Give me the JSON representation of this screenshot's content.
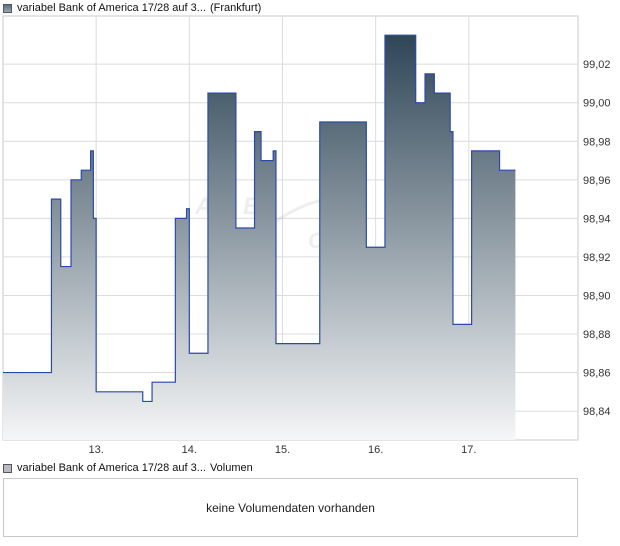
{
  "chart_data": {
    "type": "area",
    "legend": {
      "series_name": "variabel Bank of America 17/28 auf 3...",
      "series_note": "(Frankfurt)",
      "placement": "top-left"
    },
    "x_ticks": [
      {
        "label": "13.",
        "x": 1.0
      },
      {
        "label": "14.",
        "x": 2.0
      },
      {
        "label": "15.",
        "x": 3.0
      },
      {
        "label": "16.",
        "x": 4.0
      },
      {
        "label": "17.",
        "x": 5.0
      }
    ],
    "xlim": [
      0.0,
      5.85
    ],
    "ylim": [
      98.825,
      99.045
    ],
    "y_ticks": [
      {
        "label": "98,84",
        "value": 98.84
      },
      {
        "label": "98,86",
        "value": 98.86
      },
      {
        "label": "98,88",
        "value": 98.88
      },
      {
        "label": "98,90",
        "value": 98.9
      },
      {
        "label": "98,92",
        "value": 98.92
      },
      {
        "label": "98,94",
        "value": 98.94
      },
      {
        "label": "98,96",
        "value": 98.96
      },
      {
        "label": "98,98",
        "value": 98.98
      },
      {
        "label": "99,00",
        "value": 99.0
      },
      {
        "label": "99,02",
        "value": 99.02
      }
    ],
    "grid": true,
    "step": true,
    "points": [
      [
        0.0,
        98.86
      ],
      [
        0.52,
        98.95
      ],
      [
        0.62,
        98.915
      ],
      [
        0.73,
        98.96
      ],
      [
        0.84,
        98.965
      ],
      [
        0.94,
        98.975
      ],
      [
        0.97,
        98.94
      ],
      [
        1.0,
        98.85
      ],
      [
        1.5,
        98.845
      ],
      [
        1.6,
        98.855
      ],
      [
        1.85,
        98.94
      ],
      [
        1.97,
        98.945
      ],
      [
        2.0,
        98.87
      ],
      [
        2.2,
        99.005
      ],
      [
        2.5,
        98.935
      ],
      [
        2.7,
        98.985
      ],
      [
        2.77,
        98.97
      ],
      [
        2.9,
        98.975
      ],
      [
        2.93,
        98.875
      ],
      [
        3.4,
        98.99
      ],
      [
        3.9,
        98.925
      ],
      [
        4.1,
        99.035
      ],
      [
        4.43,
        99.0
      ],
      [
        4.53,
        99.015
      ],
      [
        4.63,
        99.005
      ],
      [
        4.8,
        98.985
      ],
      [
        4.83,
        98.885
      ],
      [
        5.03,
        98.975
      ],
      [
        5.33,
        98.965
      ],
      [
        5.5,
        98.965
      ]
    ]
  },
  "volume": {
    "legend_series": "variabel Bank of America 17/28 auf 3...",
    "legend_label": "Volumen",
    "message": "keine Volumendaten vorhanden"
  },
  "colors": {
    "line": "#2b4aa8",
    "fill_top": "#2f4657",
    "fill_bottom": "#f5f6f7",
    "grid": "#dcdcdc",
    "border": "#c8c8c8"
  }
}
